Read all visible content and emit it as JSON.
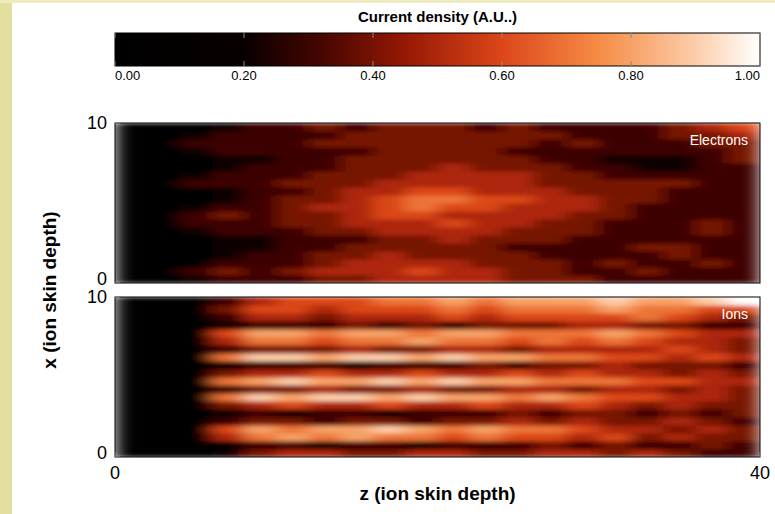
{
  "chart_data": {
    "type": "heatmap",
    "title": "Current density (A.U..)",
    "xlabel": "z (ion skin depth)",
    "ylabel": "x (ion skin depth)",
    "xlim": [
      0,
      40
    ],
    "xticks": [
      0,
      40
    ],
    "ylim": [
      0,
      10
    ],
    "yticks": [
      0,
      10
    ],
    "x": [
      1,
      3,
      5,
      7,
      9,
      11,
      13,
      15,
      17,
      19,
      21,
      23,
      25,
      27,
      29,
      31,
      33,
      35,
      37,
      39
    ],
    "y": [
      0.25,
      0.75,
      1.25,
      1.75,
      2.25,
      2.75,
      3.25,
      3.75,
      4.25,
      4.75,
      5.25,
      5.75,
      6.25,
      6.75,
      7.25,
      7.75,
      8.25,
      8.75,
      9.25,
      9.75
    ],
    "color_range": [
      0,
      1
    ],
    "color_ticks": [
      {
        "value": 0,
        "label": "0.00"
      },
      {
        "value": 0.2,
        "label": "0.20"
      },
      {
        "value": 0.4,
        "label": "0.40"
      },
      {
        "value": 0.6,
        "label": "0.60"
      },
      {
        "value": 0.8,
        "label": "0.80"
      },
      {
        "value": 1,
        "label": "1.00"
      }
    ],
    "series": [
      {
        "name": "Electrons",
        "cells": [
          [
            0,
            0,
            0.2,
            0.3,
            0.3,
            0.3,
            0.4,
            0.4,
            0.5,
            0.5,
            0.5,
            0.5,
            0.4,
            0.4,
            0.4,
            0.3,
            0.3,
            0.3,
            0.3,
            0.3
          ],
          [
            0,
            0,
            0.3,
            0.4,
            0.3,
            0.4,
            0.5,
            0.5,
            0.5,
            0.6,
            0.5,
            0.5,
            0.4,
            0.4,
            0.3,
            0.3,
            0.4,
            0.3,
            0.3,
            0.3
          ],
          [
            0,
            0,
            0.1,
            0.3,
            0.3,
            0.3,
            0.4,
            0.5,
            0.5,
            0.5,
            0.5,
            0.4,
            0.4,
            0.4,
            0.3,
            0.4,
            0.3,
            0.3,
            0.4,
            0.3
          ],
          [
            0,
            0,
            0,
            0.2,
            0.3,
            0.3,
            0.4,
            0.4,
            0.5,
            0.4,
            0.4,
            0.4,
            0.4,
            0.3,
            0.3,
            0.3,
            0.3,
            0.4,
            0.3,
            0.3
          ],
          [
            0,
            0,
            0,
            0.2,
            0.2,
            0.3,
            0.3,
            0.4,
            0.4,
            0.4,
            0.4,
            0.4,
            0.3,
            0.3,
            0.3,
            0.3,
            0.4,
            0.4,
            0.3,
            0.3
          ],
          [
            0,
            0,
            0.1,
            0.2,
            0.2,
            0.3,
            0.3,
            0.3,
            0.4,
            0.4,
            0.5,
            0.4,
            0.4,
            0.4,
            0.3,
            0.3,
            0.3,
            0.3,
            0.3,
            0.3
          ],
          [
            0,
            0,
            0.2,
            0.3,
            0.3,
            0.3,
            0.4,
            0.4,
            0.5,
            0.5,
            0.5,
            0.5,
            0.4,
            0.4,
            0.4,
            0.3,
            0.3,
            0.3,
            0.4,
            0.3
          ],
          [
            0,
            0,
            0.3,
            0.3,
            0.3,
            0.4,
            0.4,
            0.5,
            0.5,
            0.5,
            0.6,
            0.5,
            0.5,
            0.4,
            0.4,
            0.3,
            0.3,
            0.3,
            0.4,
            0.3
          ],
          [
            0,
            0,
            0.3,
            0.4,
            0.3,
            0.4,
            0.4,
            0.5,
            0.6,
            0.6,
            0.5,
            0.5,
            0.5,
            0.5,
            0.4,
            0.4,
            0.3,
            0.3,
            0.3,
            0.3
          ],
          [
            0,
            0,
            0.2,
            0.3,
            0.3,
            0.4,
            0.5,
            0.5,
            0.6,
            0.7,
            0.6,
            0.6,
            0.5,
            0.5,
            0.5,
            0.4,
            0.3,
            0.3,
            0.3,
            0.3
          ],
          [
            0,
            0,
            0.1,
            0.2,
            0.3,
            0.4,
            0.4,
            0.5,
            0.6,
            0.7,
            0.7,
            0.6,
            0.6,
            0.5,
            0.5,
            0.4,
            0.4,
            0.3,
            0.3,
            0.3
          ],
          [
            0,
            0,
            0.1,
            0.2,
            0.3,
            0.3,
            0.4,
            0.5,
            0.5,
            0.6,
            0.6,
            0.5,
            0.5,
            0.5,
            0.4,
            0.4,
            0.4,
            0.3,
            0.3,
            0.3
          ],
          [
            0,
            0,
            0.3,
            0.3,
            0.3,
            0.4,
            0.4,
            0.4,
            0.5,
            0.5,
            0.5,
            0.5,
            0.5,
            0.4,
            0.4,
            0.4,
            0.4,
            0.4,
            0.3,
            0.3
          ],
          [
            0,
            0,
            0.2,
            0.3,
            0.3,
            0.3,
            0.4,
            0.4,
            0.4,
            0.5,
            0.5,
            0.5,
            0.5,
            0.4,
            0.4,
            0.3,
            0.3,
            0.3,
            0.3,
            0.3
          ],
          [
            0,
            0,
            0.1,
            0.2,
            0.3,
            0.3,
            0.3,
            0.4,
            0.4,
            0.4,
            0.5,
            0.4,
            0.4,
            0.4,
            0.3,
            0.3,
            0.2,
            0.2,
            0.3,
            0.3
          ],
          [
            0,
            0,
            0.1,
            0.2,
            0.2,
            0.3,
            0.3,
            0.4,
            0.4,
            0.4,
            0.4,
            0.4,
            0.4,
            0.3,
            0.3,
            0.2,
            0.2,
            0.2,
            0.3,
            0.4
          ],
          [
            0,
            0,
            0.2,
            0.3,
            0.3,
            0.3,
            0.3,
            0.3,
            0.4,
            0.4,
            0.4,
            0.4,
            0.3,
            0.3,
            0.3,
            0.3,
            0.3,
            0.3,
            0.3,
            0.4
          ],
          [
            0,
            0,
            0.3,
            0.3,
            0.3,
            0.3,
            0.4,
            0.4,
            0.4,
            0.4,
            0.4,
            0.4,
            0.4,
            0.3,
            0.4,
            0.3,
            0.3,
            0.3,
            0.4,
            0.4
          ],
          [
            0,
            0,
            0.2,
            0.3,
            0.3,
            0.3,
            0.3,
            0.4,
            0.4,
            0.4,
            0.4,
            0.4,
            0.4,
            0.4,
            0.3,
            0.3,
            0.3,
            0.4,
            0.4,
            0.5
          ],
          [
            0,
            0,
            0.1,
            0.2,
            0.3,
            0.3,
            0.4,
            0.3,
            0.4,
            0.4,
            0.4,
            0.3,
            0.4,
            0.3,
            0.3,
            0.3,
            0.3,
            0.4,
            0.5,
            0.6
          ]
        ]
      },
      {
        "name": "Ions",
        "cells": [
          [
            0,
            0,
            0,
            0.2,
            0.4,
            0.5,
            0.5,
            0.4,
            0.4,
            0.5,
            0.5,
            0.4,
            0.4,
            0.5,
            0.5,
            0.4,
            0.5,
            0.4,
            0.3,
            0.3
          ],
          [
            0,
            0,
            0,
            0.1,
            0.3,
            0.3,
            0.2,
            0.3,
            0.3,
            0.2,
            0.3,
            0.3,
            0.3,
            0.4,
            0.3,
            0.4,
            0.3,
            0.3,
            0.4,
            0.3
          ],
          [
            0,
            0,
            0,
            0.5,
            0.7,
            0.8,
            0.7,
            0.8,
            0.7,
            0.7,
            0.6,
            0.7,
            0.6,
            0.6,
            0.5,
            0.6,
            0.4,
            0.5,
            0.4,
            0.4
          ],
          [
            0,
            0,
            0.1,
            0.6,
            0.8,
            0.7,
            0.8,
            0.8,
            0.9,
            0.8,
            0.7,
            0.8,
            0.7,
            0.7,
            0.6,
            0.5,
            0.5,
            0.4,
            0.5,
            0.4
          ],
          [
            0,
            0,
            0,
            0.3,
            0.4,
            0.4,
            0.3,
            0.4,
            0.4,
            0.3,
            0.4,
            0.4,
            0.5,
            0.4,
            0.5,
            0.4,
            0.4,
            0.5,
            0.4,
            0.3
          ],
          [
            0,
            0,
            0,
            0.2,
            0.3,
            0.2,
            0.3,
            0.3,
            0.2,
            0.3,
            0.3,
            0.3,
            0.4,
            0.3,
            0.4,
            0.4,
            0.3,
            0.4,
            0.3,
            0.4
          ],
          [
            0,
            0,
            0,
            0.4,
            0.5,
            0.6,
            0.5,
            0.5,
            0.6,
            0.5,
            0.5,
            0.6,
            0.5,
            0.5,
            0.6,
            0.5,
            0.4,
            0.5,
            0.4,
            0.4
          ],
          [
            0,
            0,
            0.1,
            0.7,
            0.9,
            0.8,
            0.9,
            0.9,
            0.8,
            0.9,
            0.8,
            0.8,
            0.7,
            0.8,
            0.7,
            0.6,
            0.6,
            0.5,
            0.5,
            0.4
          ],
          [
            0,
            0,
            0,
            0.3,
            0.4,
            0.4,
            0.5,
            0.4,
            0.4,
            0.5,
            0.4,
            0.4,
            0.5,
            0.5,
            0.4,
            0.5,
            0.5,
            0.4,
            0.5,
            0.4
          ],
          [
            0,
            0,
            0.1,
            0.7,
            0.8,
            0.9,
            0.8,
            0.8,
            0.9,
            0.8,
            0.9,
            0.8,
            0.8,
            0.7,
            0.7,
            0.7,
            0.6,
            0.6,
            0.5,
            0.5
          ],
          [
            0,
            0,
            0,
            0.4,
            0.5,
            0.5,
            0.6,
            0.5,
            0.5,
            0.6,
            0.5,
            0.5,
            0.6,
            0.5,
            0.6,
            0.5,
            0.5,
            0.4,
            0.5,
            0.4
          ],
          [
            0,
            0,
            0,
            0.2,
            0.3,
            0.3,
            0.3,
            0.2,
            0.3,
            0.3,
            0.3,
            0.4,
            0.3,
            0.4,
            0.4,
            0.5,
            0.4,
            0.4,
            0.4,
            0.3
          ],
          [
            0,
            0,
            0.1,
            0.7,
            0.9,
            0.9,
            0.8,
            0.9,
            0.9,
            0.8,
            0.9,
            0.8,
            0.8,
            0.7,
            0.7,
            0.6,
            0.6,
            0.5,
            0.6,
            0.5
          ],
          [
            0,
            0,
            0,
            0.3,
            0.4,
            0.4,
            0.4,
            0.5,
            0.4,
            0.4,
            0.5,
            0.5,
            0.4,
            0.5,
            0.5,
            0.5,
            0.5,
            0.6,
            0.5,
            0.4
          ],
          [
            0,
            0,
            0,
            0.5,
            0.7,
            0.7,
            0.6,
            0.7,
            0.7,
            0.8,
            0.7,
            0.7,
            0.6,
            0.7,
            0.6,
            0.7,
            0.6,
            0.5,
            0.5,
            0.4
          ],
          [
            0,
            0,
            0.1,
            0.6,
            0.8,
            0.8,
            0.7,
            0.8,
            0.8,
            0.7,
            0.8,
            0.8,
            0.7,
            0.7,
            0.7,
            0.8,
            0.7,
            0.6,
            0.5,
            0.5
          ],
          [
            0,
            0,
            0,
            0.2,
            0.3,
            0.3,
            0.3,
            0.4,
            0.3,
            0.4,
            0.3,
            0.4,
            0.4,
            0.4,
            0.5,
            0.5,
            0.4,
            0.4,
            0.3,
            0.3
          ],
          [
            0,
            0,
            0,
            0.3,
            0.5,
            0.5,
            0.4,
            0.5,
            0.5,
            0.5,
            0.6,
            0.5,
            0.6,
            0.6,
            0.6,
            0.6,
            0.7,
            0.6,
            0.5,
            0.4
          ],
          [
            0,
            0,
            0,
            0.4,
            0.6,
            0.6,
            0.5,
            0.6,
            0.6,
            0.6,
            0.7,
            0.6,
            0.7,
            0.7,
            0.7,
            0.8,
            0.7,
            0.7,
            0.6,
            0.6
          ],
          [
            0,
            0,
            0,
            0.3,
            0.5,
            0.6,
            0.6,
            0.6,
            0.7,
            0.7,
            0.8,
            0.7,
            0.8,
            0.8,
            0.8,
            0.9,
            0.8,
            0.8,
            0.9,
            1.0
          ]
        ]
      }
    ]
  }
}
